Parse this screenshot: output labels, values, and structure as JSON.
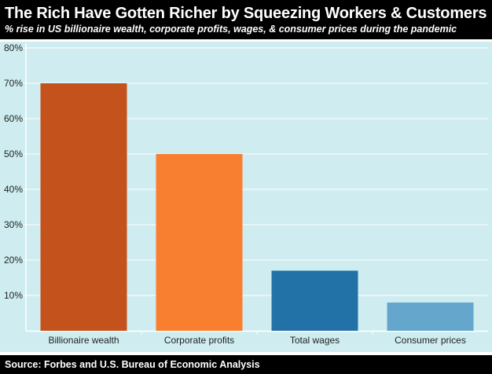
{
  "chart_data": {
    "type": "bar",
    "title": "The Rich Have Gotten Richer by Squeezing Workers & Customers",
    "subtitle": "% rise in US billionaire wealth, corporate profits, wages, & consumer prices during the pandemic",
    "categories": [
      "Billionaire wealth",
      "Corporate profits",
      "Total wages",
      "Consumer prices"
    ],
    "values": [
      70,
      50,
      17,
      8
    ],
    "colors": [
      "#c4521c",
      "#f87e30",
      "#2272a8",
      "#64a6cc"
    ],
    "ylim": [
      0,
      80
    ],
    "yticks": [
      10,
      20,
      30,
      40,
      50,
      60,
      70,
      80
    ],
    "ytick_labels": [
      "10%",
      "20%",
      "30%",
      "40%",
      "50%",
      "60%",
      "70%",
      "80%"
    ],
    "grid": true,
    "background": "#cfedf0",
    "source": "Source: Forbes and U.S. Bureau of Economic Analysis"
  }
}
